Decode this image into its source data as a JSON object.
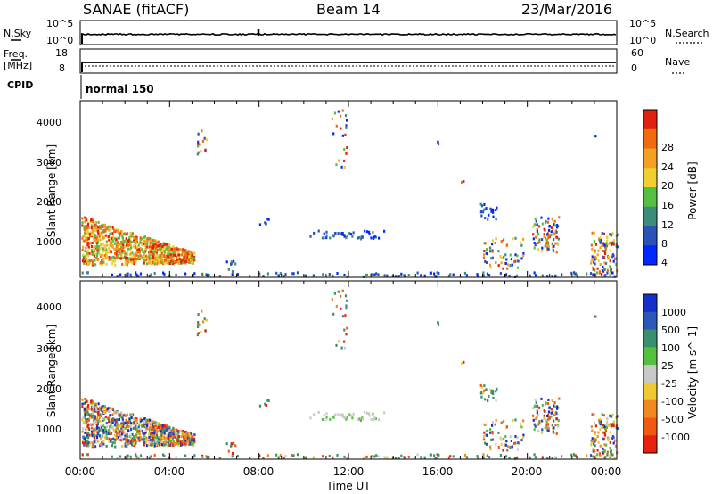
{
  "header": {
    "station": "SANAE (fitACF)",
    "beam": "Beam 14",
    "date": "23/Mar/2016"
  },
  "top_panels": {
    "nsky_label": "N.Sky",
    "nsearch_label": "N.Search",
    "noise_ticks_left": [
      "10^5",
      "10^0"
    ],
    "noise_ticks_right": [
      "10^5",
      "10^0"
    ],
    "freq_label_1": "Freq.",
    "freq_label_2": "[MHz]",
    "freq_ticks": [
      "18",
      "8"
    ],
    "nave_label": "Nave",
    "nave_ticks": [
      "60",
      "0"
    ],
    "cpid_label": "CPID",
    "cpid_value": "normal 150"
  },
  "chart_data": [
    {
      "type": "heatmap",
      "quantity": "power",
      "ylabel": "Slant Range [km]",
      "xlabel": "Time UT",
      "x_ticks": [
        "00:00",
        "04:00",
        "08:00",
        "12:00",
        "16:00",
        "20:00",
        "00:00"
      ],
      "xlim_hours": [
        0,
        24
      ],
      "y_ticks": [
        "1000",
        "2000",
        "3000",
        "4000"
      ],
      "ylim_km": [
        180,
        4500
      ],
      "colorbar_label": "Power [dB]",
      "colorbar_ticks": [
        "4",
        "8",
        "12",
        "16",
        "20",
        "24",
        "28"
      ],
      "colorbar_range": [
        0,
        32
      ],
      "colorbar_colors": [
        "#0028ff",
        "#2b52b7",
        "#3d8c7a",
        "#55c040",
        "#f0d030",
        "#f5a020",
        "#f06a10",
        "#e02010"
      ]
    },
    {
      "type": "heatmap",
      "quantity": "velocity",
      "ylabel": "Slant Range [km]",
      "xlabel": "Time UT",
      "x_ticks": [
        "00:00",
        "04:00",
        "08:00",
        "12:00",
        "16:00",
        "20:00",
        "00:00"
      ],
      "xlim_hours": [
        0,
        24
      ],
      "y_ticks": [
        "1000",
        "2000",
        "3000",
        "4000"
      ],
      "ylim_km": [
        180,
        4500
      ],
      "colorbar_label": "Velocity [m s^-1]",
      "colorbar_ticks": [
        "1000",
        "500",
        "100",
        "25",
        "-25",
        "-100",
        "-500",
        "-1000"
      ],
      "colorbar_colors": [
        "#1530c8",
        "#2b57b8",
        "#3b8f6e",
        "#55c040",
        "#c8c8c8",
        "#f0c830",
        "#f08a20",
        "#f05a10",
        "#e82010"
      ]
    }
  ],
  "colors": {
    "axis": "#000000",
    "missing": "#ffffff"
  }
}
